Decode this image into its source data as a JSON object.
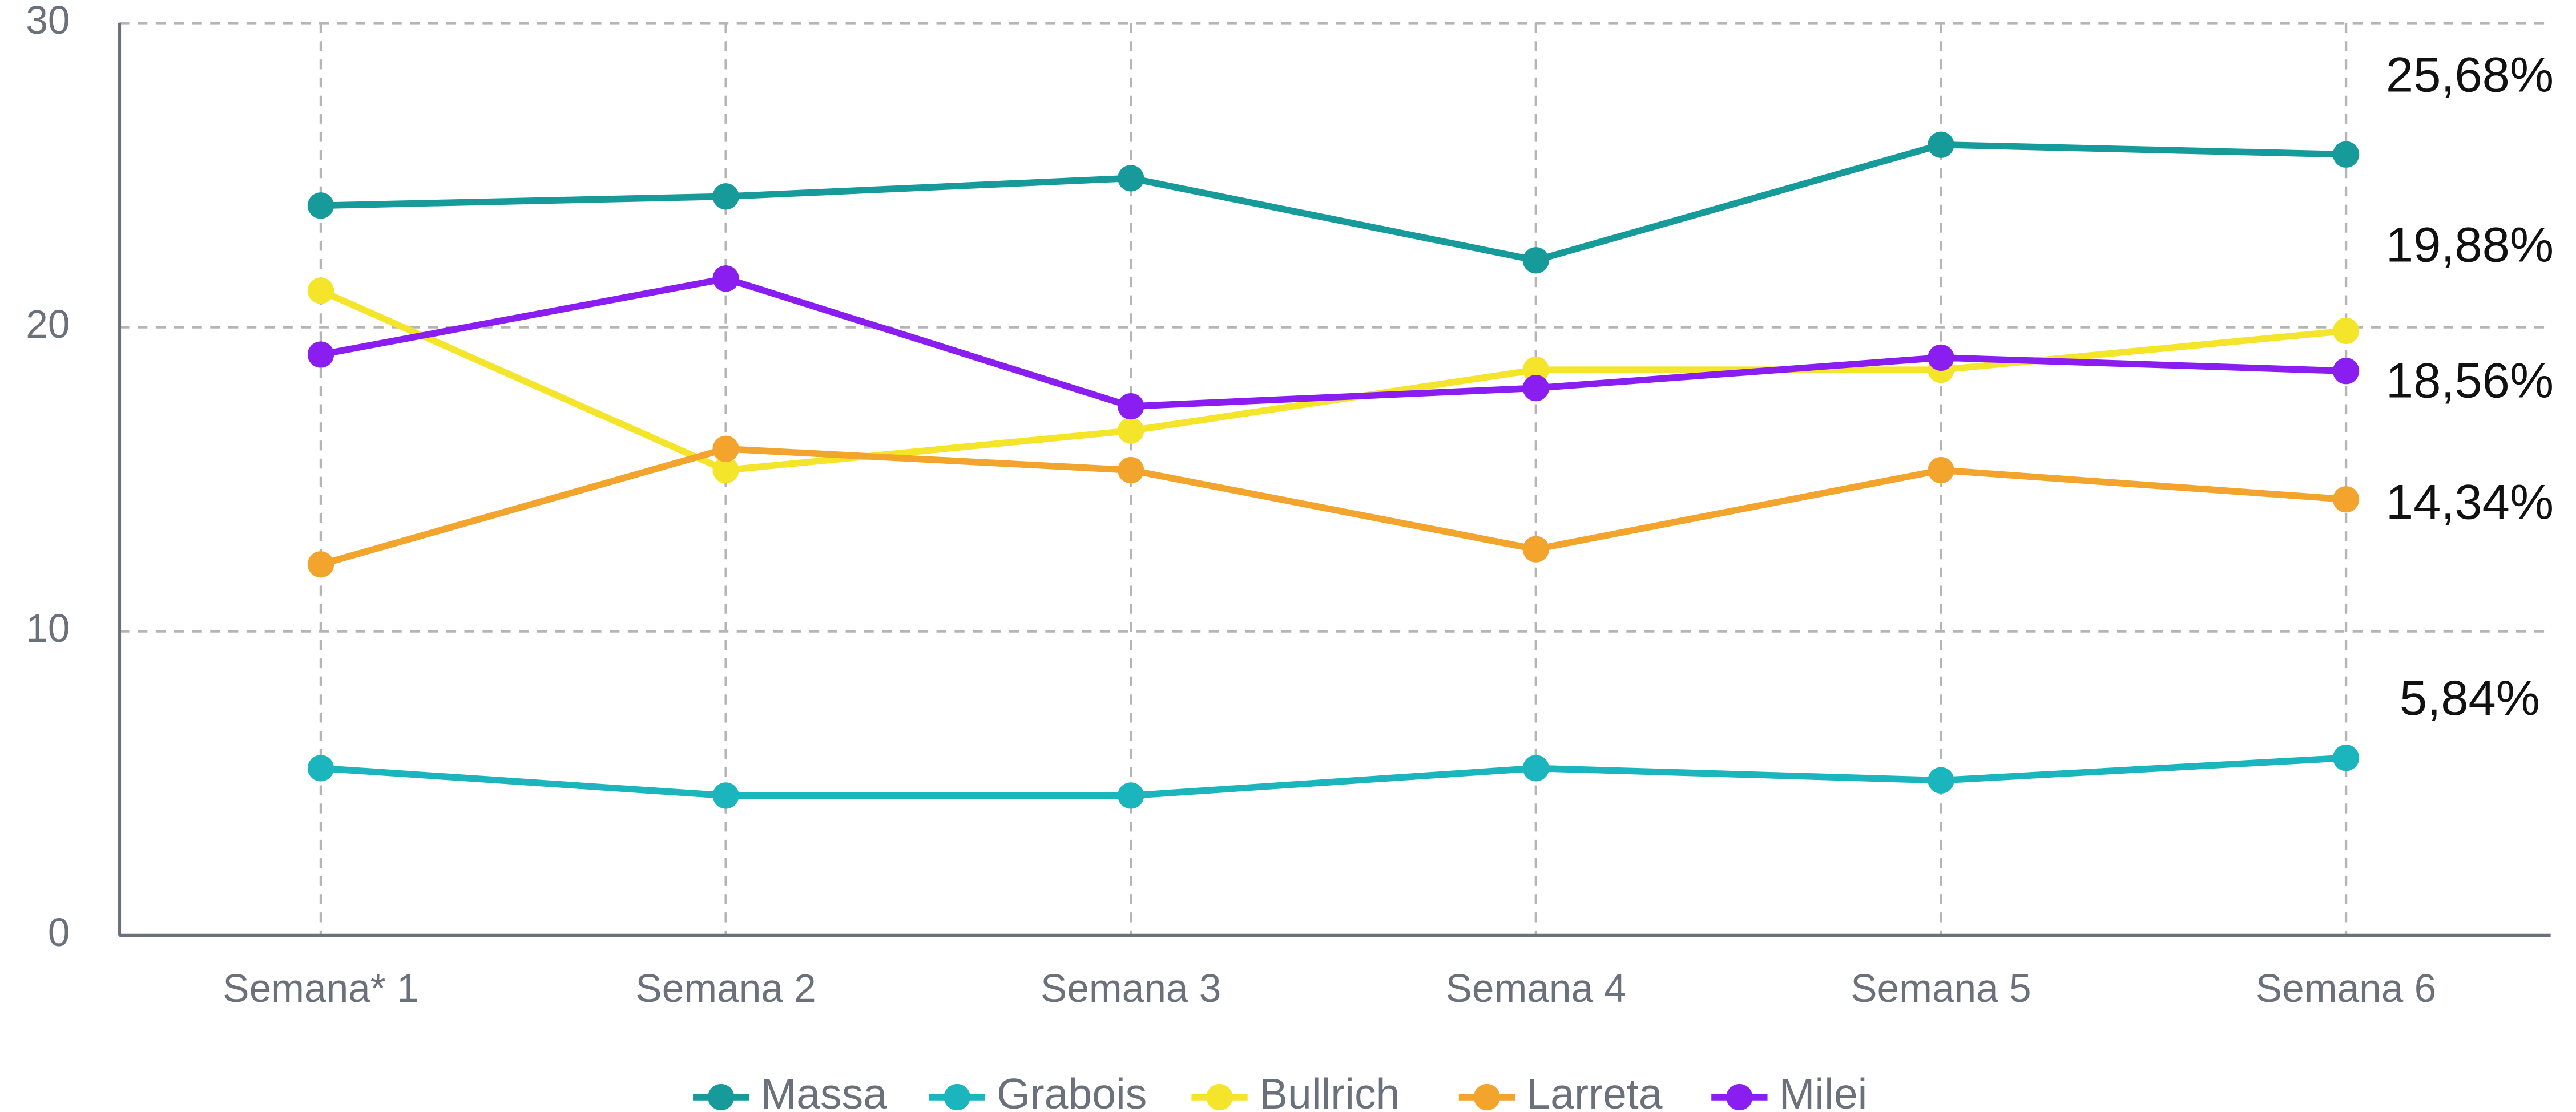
{
  "chart_data": {
    "type": "line",
    "categories": [
      "Semana* 1",
      "Semana 2",
      "Semana 3",
      "Semana 4",
      "Semana 5",
      "Semana 6"
    ],
    "series": [
      {
        "name": "Massa",
        "color": "#179a9a",
        "values": [
          24.0,
          24.3,
          24.9,
          22.2,
          26.0,
          25.68
        ],
        "value_labels": [
          null,
          null,
          null,
          null,
          null,
          "25,68%"
        ]
      },
      {
        "name": "Grabois",
        "color": "#1ab5bd",
        "values": [
          5.5,
          4.6,
          4.6,
          5.5,
          5.1,
          5.84
        ],
        "value_labels": [
          null,
          null,
          null,
          null,
          null,
          "5,84%"
        ]
      },
      {
        "name": "Bullrich",
        "color": "#f5e52a",
        "values": [
          21.2,
          15.3,
          16.6,
          18.6,
          18.6,
          19.88
        ],
        "value_labels": [
          null,
          null,
          null,
          null,
          null,
          "19,88%"
        ]
      },
      {
        "name": "Larreta",
        "color": "#f2a42d",
        "values": [
          12.2,
          16.0,
          15.3,
          12.7,
          15.3,
          14.34
        ],
        "value_labels": [
          null,
          null,
          null,
          null,
          null,
          "14,34%"
        ]
      },
      {
        "name": "Milei",
        "color": "#8a1df0",
        "values": [
          19.1,
          21.6,
          17.4,
          18.0,
          19.0,
          18.56
        ],
        "value_labels": [
          null,
          null,
          null,
          null,
          null,
          "18,56%"
        ]
      }
    ],
    "ylim": [
      0,
      30
    ],
    "yticks": [
      0,
      10,
      20,
      30
    ],
    "grid": true
  }
}
